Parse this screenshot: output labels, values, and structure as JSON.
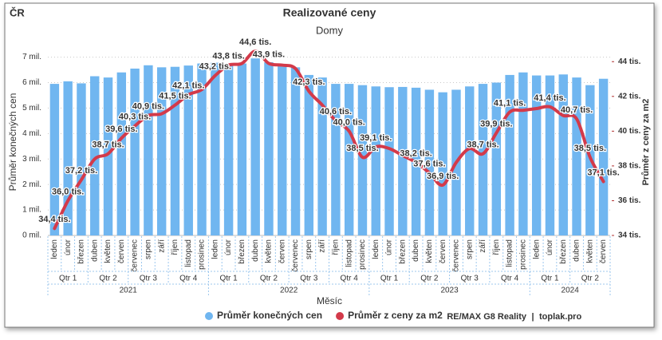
{
  "chart_data": {
    "type": "combo",
    "region": "ČR",
    "title": "Realizované ceny",
    "subtitle": "Domy",
    "x_label": "Měsíc",
    "y_label": "Průměr konečných cen",
    "y2_label": "Průměr z ceny za m2",
    "categories": [
      "leden",
      "únor",
      "březen",
      "duben",
      "květen",
      "červen",
      "červenec",
      "srpen",
      "září",
      "říjen",
      "listopad",
      "prosinec",
      "leden",
      "únor",
      "březen",
      "duben",
      "květen",
      "červen",
      "červenec",
      "srpen",
      "září",
      "říjen",
      "listopad",
      "prosinec",
      "leden",
      "únor",
      "březen",
      "duben",
      "květen",
      "červen",
      "červenec",
      "srpen",
      "září",
      "říjen",
      "listopad",
      "prosinec",
      "leden",
      "únor",
      "březen",
      "duben",
      "květen",
      "červen"
    ],
    "quarters": [
      "Qtr 1",
      "Qtr 2",
      "Qtr 3",
      "Qtr 4",
      "Qtr 1",
      "Qtr 2",
      "Qtr 3",
      "Qtr 4",
      "Qtr 1",
      "Qtr 2",
      "Qtr 3",
      "Qtr 4",
      "Qtr 1",
      "Qtr 2"
    ],
    "years": [
      "2021",
      "2022",
      "2023",
      "2024"
    ],
    "ylim": [
      0,
      7.3
    ],
    "yticks": [
      {
        "value": 0,
        "label": "0 mil."
      },
      {
        "value": 1,
        "label": "1 mil."
      },
      {
        "value": 2,
        "label": "2 mil."
      },
      {
        "value": 3,
        "label": "3 mil."
      },
      {
        "value": 4,
        "label": "4 mil."
      },
      {
        "value": 5,
        "label": "5 mil."
      },
      {
        "value": 6,
        "label": "6 mil."
      },
      {
        "value": 7,
        "label": "7 mil."
      }
    ],
    "y2lim": [
      34,
      44.7
    ],
    "y2ticks": [
      {
        "value": 34,
        "label": "34 tis."
      },
      {
        "value": 36,
        "label": "36 tis."
      },
      {
        "value": 38,
        "label": "38 tis."
      },
      {
        "value": 40,
        "label": "40 tis."
      },
      {
        "value": 42,
        "label": "42 tis."
      },
      {
        "value": 44,
        "label": "44 tis."
      }
    ],
    "grid": true,
    "series": [
      {
        "name": "Průměr konečných cen",
        "type": "bar",
        "axis": "y",
        "color": "#70b6f0",
        "values": [
          5.95,
          6.05,
          5.97,
          6.25,
          6.2,
          6.4,
          6.55,
          6.68,
          6.6,
          6.62,
          6.67,
          6.75,
          6.78,
          6.68,
          6.75,
          6.95,
          6.8,
          6.72,
          6.6,
          6.3,
          6.2,
          5.95,
          5.95,
          5.9,
          5.85,
          5.82,
          5.83,
          5.8,
          5.72,
          5.62,
          5.72,
          5.85,
          5.95,
          6.0,
          6.3,
          6.4,
          6.28,
          6.28,
          6.32,
          6.2,
          5.9,
          6.15
        ]
      },
      {
        "name": "Průměr z ceny za m2",
        "type": "line",
        "axis": "y2",
        "color": "#d33a4a",
        "values": [
          34.4,
          36.0,
          37.2,
          38.4,
          38.7,
          39.6,
          40.3,
          40.9,
          41.0,
          41.5,
          42.1,
          42.4,
          43.2,
          43.8,
          43.9,
          44.6,
          43.9,
          43.8,
          43.6,
          42.3,
          41.5,
          40.6,
          40.0,
          38.5,
          39.1,
          39.0,
          38.6,
          38.2,
          37.6,
          36.9,
          38.2,
          39.0,
          38.7,
          39.9,
          41.1,
          41.2,
          41.3,
          41.4,
          40.9,
          40.7,
          38.5,
          37.1
        ],
        "value_labels": [
          "34,4 tis.",
          "36,0 tis.",
          "37,2 tis.",
          null,
          "38,7 tis.",
          "39,6 tis.",
          "40,3 tis.",
          "40,9 tis.",
          null,
          "41,5 tis.",
          "42,1 tis.",
          null,
          "43,2 tis.",
          "43,8 tis.",
          null,
          "44,6 tis.",
          "43,9 tis.",
          null,
          null,
          "42,3 tis.",
          null,
          "40,6 tis.",
          "40,0 tis.",
          "38,5 tis.",
          "39,1 tis.",
          null,
          null,
          "38,2 tis.",
          "37,6 tis.",
          "36,9 tis.",
          null,
          null,
          "38,7 tis.",
          "39,9 tis.",
          "41,1 tis.",
          null,
          null,
          "41,4 tis.",
          null,
          "40,7 tis.",
          "38,5 tis.",
          "37,1 tis."
        ]
      }
    ],
    "credits": {
      "left": "RE/MAX G8 Reality",
      "separator": "|",
      "right": "toplak.pro"
    }
  }
}
